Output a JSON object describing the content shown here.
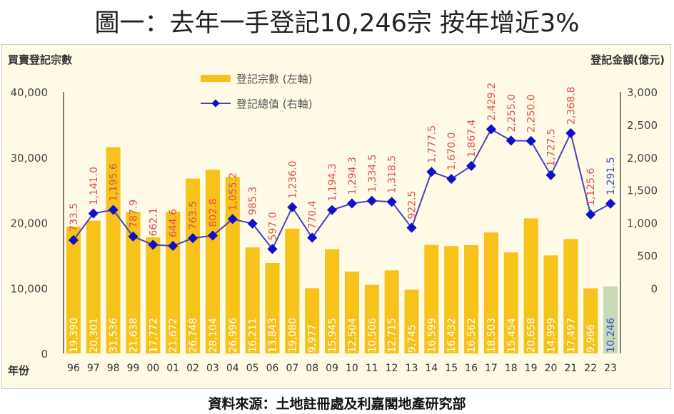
{
  "title": "圖一：去年一手登記10,246宗 按年增近3%",
  "source": "資料來源：土地註冊處及利嘉閣地產研究部",
  "chart_data": {
    "type": "bar",
    "left_axis_title": "買賣登記宗數",
    "right_axis_title": "登記金額(億元)",
    "xlabel": "年份",
    "categories": [
      "96",
      "97",
      "98",
      "99",
      "00",
      "01",
      "02",
      "03",
      "04",
      "05",
      "06",
      "07",
      "08",
      "09",
      "10",
      "11",
      "12",
      "13",
      "14",
      "15",
      "16",
      "17",
      "18",
      "19",
      "20",
      "21",
      "22",
      "23"
    ],
    "series": [
      {
        "name": "登記宗數 (左軸)",
        "type": "bar",
        "axis": "left",
        "color": "#f7c21a",
        "values": [
          19390,
          20301,
          31536,
          21638,
          17772,
          21672,
          26748,
          28104,
          26996,
          16211,
          13843,
          19080,
          9977,
          15945,
          12504,
          10506,
          12715,
          9745,
          16599,
          16432,
          16562,
          18503,
          15454,
          20658,
          14999,
          17497,
          9966,
          10246
        ],
        "labels": [
          "19,390",
          "20,301",
          "31,536",
          "21,638",
          "17,772",
          "21,672",
          "26,748",
          "28,104",
          "26,996",
          "16,211",
          "13,843",
          "19,080",
          "9,977",
          "15,945",
          "12,504",
          "10,506",
          "12,715",
          "9,745",
          "16,599",
          "16,432",
          "16,562",
          "18,503",
          "15,454",
          "20,658",
          "14,999",
          "17,497",
          "9,966",
          "10,246"
        ]
      },
      {
        "name": "登記總值 (右軸)",
        "type": "line",
        "axis": "right",
        "color": "#1a1acc",
        "values": [
          733.5,
          1141.0,
          1195.6,
          787.9,
          662.1,
          644.6,
          763.5,
          802.8,
          1055.2,
          985.3,
          597.0,
          1236.0,
          770.4,
          1194.3,
          1294.3,
          1334.5,
          1318.5,
          922.5,
          1777.5,
          1670.0,
          1867.4,
          2429.2,
          2255.0,
          2250.0,
          1727.5,
          2368.8,
          1125.6,
          1291.5
        ],
        "labels": [
          "733.5",
          "1,141.0",
          "1,195.6",
          "787.9",
          "662.1",
          "644.6",
          "763.5",
          "802.8",
          "1,055.2",
          "985.3",
          "597.0",
          "1,236.0",
          "770.4",
          "1,194.3",
          "1,294.3",
          "1,334.5",
          "1,318.5",
          "922.5",
          "1,777.5",
          "1,670.0",
          "1,867.4",
          "2,429.2",
          "2,255.0",
          "2,250.0",
          "1,727.5",
          "2,368.8",
          "1,125.6",
          "1,291.5"
        ]
      }
    ],
    "highlight_color": "#c9d9b5",
    "label_color": "#e05050",
    "left_ylim": [
      0,
      40000
    ],
    "left_ticks": [
      "0",
      "10,000",
      "20,000",
      "30,000",
      "40,000"
    ],
    "right_ylim": [
      -1000,
      3000
    ],
    "right_ticks": [
      "0",
      "500",
      "1,000",
      "1,500",
      "2,000",
      "2,500",
      "3,000"
    ],
    "legend_placement": "top-left",
    "grid": false
  }
}
